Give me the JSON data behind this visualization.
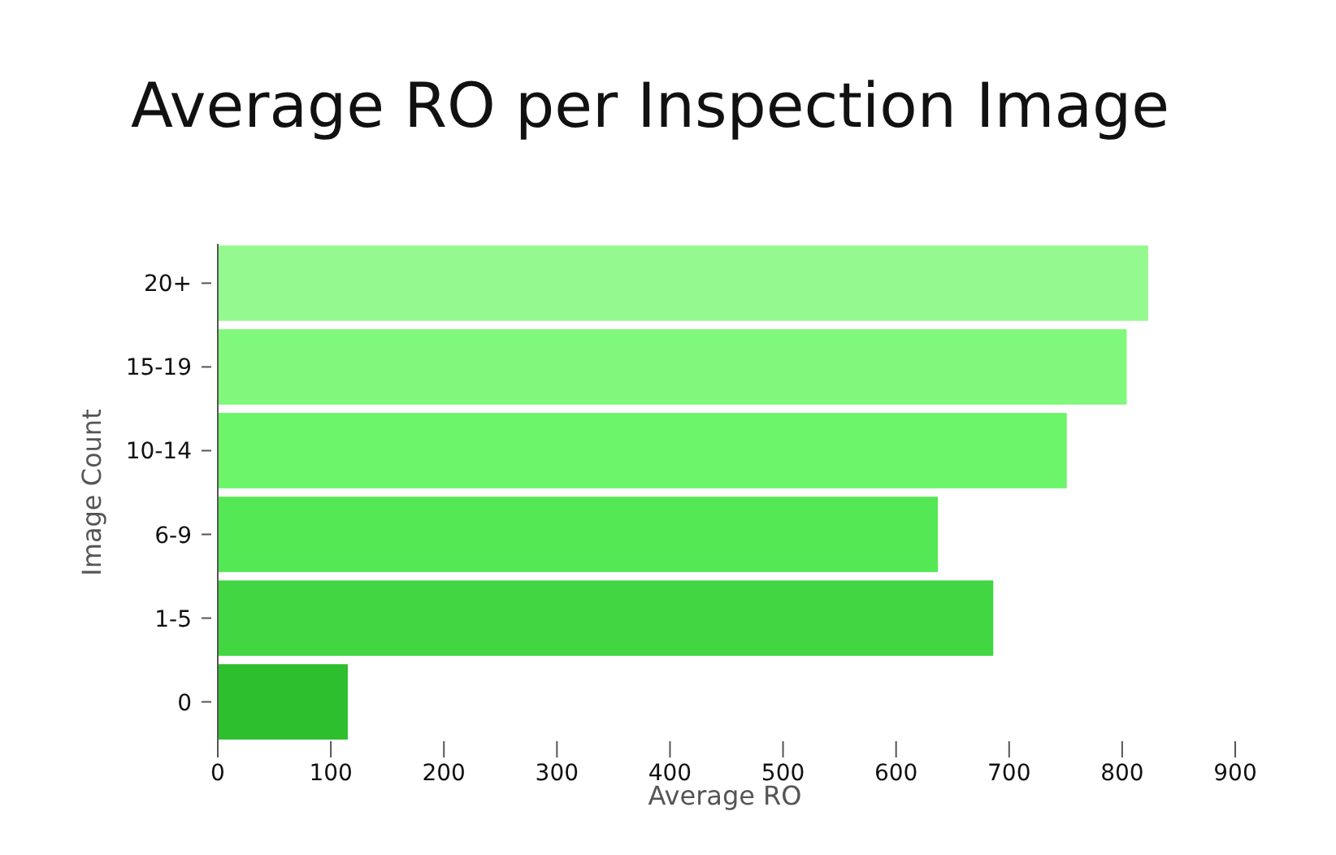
{
  "chart_data": {
    "type": "bar",
    "orientation": "horizontal",
    "title": "Average RO per Inspection Image",
    "xlabel": "Average RO",
    "ylabel": "Image Count",
    "categories": [
      "20+",
      "15-19",
      "10-14",
      "6-9",
      "1-5",
      "0"
    ],
    "values": [
      823,
      804,
      751,
      637,
      686,
      115
    ],
    "colors": [
      "#94fa90",
      "#80f87c",
      "#6cf56a",
      "#55e855",
      "#43d643",
      "#2dbf2d"
    ],
    "xlim": [
      0,
      900
    ],
    "xticks": [
      0,
      100,
      200,
      300,
      400,
      500,
      600,
      700,
      800,
      900
    ]
  }
}
